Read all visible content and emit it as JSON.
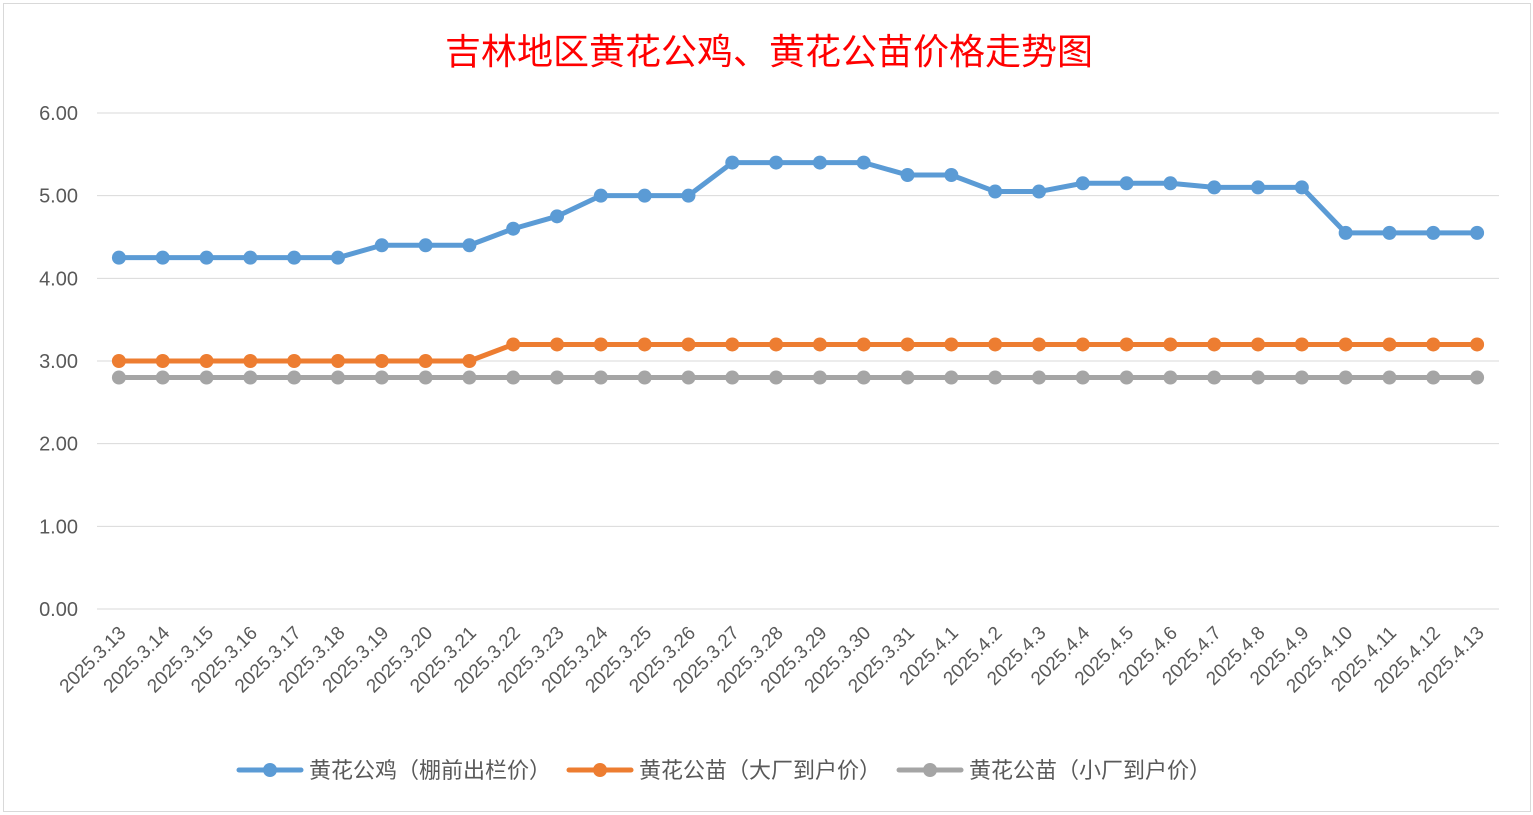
{
  "chart_data": {
    "type": "line",
    "title": "吉林地区黄花公鸡、黄花公苗价格走势图",
    "xlabel": "",
    "ylabel": "",
    "ylim": [
      0,
      6
    ],
    "yticks": [
      "0.00",
      "1.00",
      "2.00",
      "3.00",
      "4.00",
      "5.00",
      "6.00"
    ],
    "grid": true,
    "legend_position": "bottom",
    "categories": [
      "2025.3.13",
      "2025.3.14",
      "2025.3.15",
      "2025.3.16",
      "2025.3.17",
      "2025.3.18",
      "2025.3.19",
      "2025.3.20",
      "2025.3.21",
      "2025.3.22",
      "2025.3.23",
      "2025.3.24",
      "2025.3.25",
      "2025.3.26",
      "2025.3.27",
      "2025.3.28",
      "2025.3.29",
      "2025.3.30",
      "2025.3.31",
      "2025.4.1",
      "2025.4.2",
      "2025.4.3",
      "2025.4.4",
      "2025.4.5",
      "2025.4.6",
      "2025.4.7",
      "2025.4.8",
      "2025.4.9",
      "2025.4.10",
      "2025.4.11",
      "2025.4.12",
      "2025.4.13"
    ],
    "series": [
      {
        "name": "黄花公鸡（棚前出栏价）",
        "color": "#5b9bd5",
        "values": [
          4.25,
          4.25,
          4.25,
          4.25,
          4.25,
          4.25,
          4.4,
          4.4,
          4.4,
          4.6,
          4.75,
          5.0,
          5.0,
          5.0,
          5.4,
          5.4,
          5.4,
          5.4,
          5.25,
          5.25,
          5.05,
          5.05,
          5.15,
          5.15,
          5.15,
          5.1,
          5.1,
          5.1,
          4.55,
          4.55,
          4.55,
          4.55
        ]
      },
      {
        "name": "黄花公苗（大厂到户价）",
        "color": "#ed7d31",
        "values": [
          3.0,
          3.0,
          3.0,
          3.0,
          3.0,
          3.0,
          3.0,
          3.0,
          3.0,
          3.2,
          3.2,
          3.2,
          3.2,
          3.2,
          3.2,
          3.2,
          3.2,
          3.2,
          3.2,
          3.2,
          3.2,
          3.2,
          3.2,
          3.2,
          3.2,
          3.2,
          3.2,
          3.2,
          3.2,
          3.2,
          3.2,
          3.2
        ]
      },
      {
        "name": "黄花公苗（小厂到户价）",
        "color": "#a5a5a5",
        "values": [
          2.8,
          2.8,
          2.8,
          2.8,
          2.8,
          2.8,
          2.8,
          2.8,
          2.8,
          2.8,
          2.8,
          2.8,
          2.8,
          2.8,
          2.8,
          2.8,
          2.8,
          2.8,
          2.8,
          2.8,
          2.8,
          2.8,
          2.8,
          2.8,
          2.8,
          2.8,
          2.8,
          2.8,
          2.8,
          2.8,
          2.8,
          2.8
        ]
      }
    ]
  }
}
